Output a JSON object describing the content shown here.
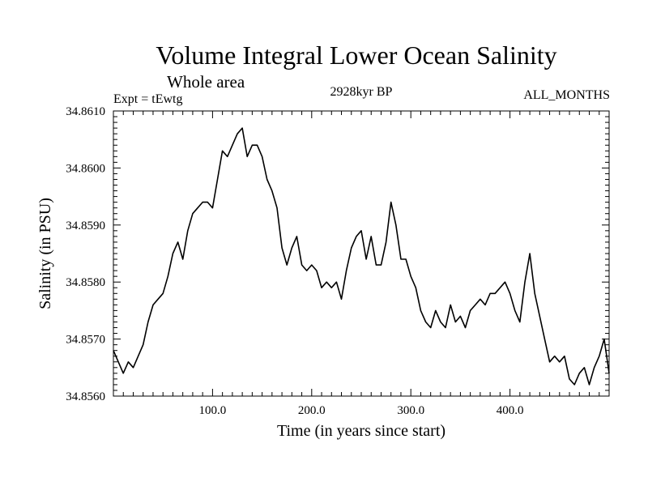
{
  "header": {
    "title": "Volume Integral Lower Ocean Salinity",
    "subtitle": "Whole area",
    "experiment": "Expt = tEwtg",
    "period": "2928kyr BP",
    "season": "ALL_MONTHS"
  },
  "chart_data": {
    "type": "line",
    "title": "Volume Integral Lower Ocean Salinity",
    "xlabel": "Time (in years since start)",
    "ylabel": "Salinity (in PSU)",
    "xlim": [
      0,
      500
    ],
    "ylim": [
      34.856,
      34.861
    ],
    "xticks": [
      100,
      200,
      300,
      400
    ],
    "xtick_labels": [
      "100.0",
      "200.0",
      "300.0",
      "400.0"
    ],
    "yticks": [
      34.856,
      34.857,
      34.858,
      34.859,
      34.86,
      34.861
    ],
    "ytick_labels": [
      "34.8560",
      "34.8570",
      "34.8580",
      "34.8590",
      "34.8600",
      "34.8610"
    ],
    "grid": false,
    "series": [
      {
        "name": "Salinity",
        "x": [
          0,
          5,
          10,
          15,
          20,
          25,
          30,
          35,
          40,
          45,
          50,
          55,
          60,
          65,
          70,
          75,
          80,
          85,
          90,
          95,
          100,
          105,
          110,
          115,
          120,
          125,
          130,
          135,
          140,
          145,
          150,
          155,
          160,
          165,
          170,
          175,
          180,
          185,
          190,
          195,
          200,
          205,
          210,
          215,
          220,
          225,
          230,
          235,
          240,
          245,
          250,
          255,
          260,
          265,
          270,
          275,
          280,
          285,
          290,
          295,
          300,
          305,
          310,
          315,
          320,
          325,
          330,
          335,
          340,
          345,
          350,
          355,
          360,
          365,
          370,
          375,
          380,
          385,
          390,
          395,
          400,
          405,
          410,
          415,
          420,
          425,
          430,
          435,
          440,
          445,
          450,
          455,
          460,
          465,
          470,
          475,
          480,
          485,
          490,
          495,
          500
        ],
        "values": [
          34.8568,
          34.8566,
          34.8564,
          34.8566,
          34.8565,
          34.8567,
          34.8569,
          34.8573,
          34.8576,
          34.8577,
          34.8578,
          34.8581,
          34.8585,
          34.8587,
          34.8584,
          34.8589,
          34.8592,
          34.8593,
          34.8594,
          34.8594,
          34.8593,
          34.8598,
          34.8603,
          34.8602,
          34.8604,
          34.8606,
          34.8607,
          34.8602,
          34.8604,
          34.8604,
          34.8602,
          34.8598,
          34.8596,
          34.8593,
          34.8586,
          34.8583,
          34.8586,
          34.8588,
          34.8583,
          34.8582,
          34.8583,
          34.8582,
          34.8579,
          34.858,
          34.8579,
          34.858,
          34.8577,
          34.8582,
          34.8586,
          34.8588,
          34.8589,
          34.8584,
          34.8588,
          34.8583,
          34.8583,
          34.8587,
          34.8594,
          34.859,
          34.8584,
          34.8584,
          34.8581,
          34.8579,
          34.8575,
          34.8573,
          34.8572,
          34.8575,
          34.8573,
          34.8572,
          34.8576,
          34.8573,
          34.8574,
          34.8572,
          34.8575,
          34.8576,
          34.8577,
          34.8576,
          34.8578,
          34.8578,
          34.8579,
          34.858,
          34.8578,
          34.8575,
          34.8573,
          34.858,
          34.8585,
          34.8578,
          34.8574,
          34.857,
          34.8566,
          34.8567,
          34.8566,
          34.8567,
          34.8563,
          34.8562,
          34.8564,
          34.8565,
          34.8562,
          34.8565,
          34.8567,
          34.857,
          34.8564
        ]
      }
    ]
  }
}
